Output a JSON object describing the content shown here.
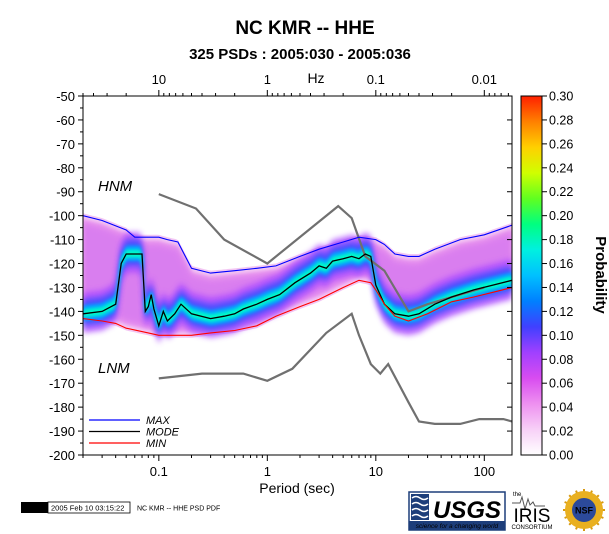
{
  "title": "NC KMR -- HHE",
  "subtitle": "325 PSDs : 2005:030 - 2005:036",
  "footer": {
    "gmt_label": "GMT",
    "timestamp": "2005 Feb 10 03:15:22",
    "caption": "NC KMR -- HHE PSD PDF"
  },
  "logos": {
    "usgs_text": "USGS",
    "usgs_tagline": "science for a changing world",
    "iris_text": "IRIS",
    "iris_sub": "CONSORTIUM",
    "iris_prefix": "the",
    "nsf_text": "NSF"
  },
  "chart_data": {
    "type": "heatmap",
    "title": "NC KMR -- HHE",
    "subtitle": "325 PSDs : 2005:030 - 2005:036",
    "xlabel": "Period (sec)",
    "top_axis_label": "Hz",
    "x_scale": "log",
    "xlim": [
      0.02,
      180
    ],
    "ylim": [
      -200,
      -50
    ],
    "x_ticks": [
      {
        "value": 0.1,
        "label": "0.1"
      },
      {
        "value": 1,
        "label": "1"
      },
      {
        "value": 10,
        "label": "10"
      },
      {
        "value": 100,
        "label": "100"
      }
    ],
    "top_ticks": [
      {
        "value": 10,
        "label": "10"
      },
      {
        "value": 1,
        "label": "1"
      },
      {
        "value": 0.1,
        "label": "0.1"
      },
      {
        "value": 0.01,
        "label": "0.01"
      }
    ],
    "y_ticks": [
      -50,
      -60,
      -70,
      -80,
      -90,
      -100,
      -110,
      -120,
      -130,
      -140,
      -150,
      -160,
      -170,
      -180,
      -190,
      -200
    ],
    "colorbar": {
      "label": "Probability",
      "range": [
        0,
        0.3
      ],
      "ticks": [
        "0.00",
        "0.02",
        "0.04",
        "0.06",
        "0.08",
        "0.10",
        "0.12",
        "0.14",
        "0.16",
        "0.18",
        "0.20",
        "0.22",
        "0.24",
        "0.26",
        "0.28",
        "0.30"
      ],
      "colors": [
        "#ffffff",
        "#f7d0f7",
        "#ee90f0",
        "#d84cf0",
        "#a040ff",
        "#4040ff",
        "#0080ff",
        "#00c0ff",
        "#00f0e0",
        "#00ff80",
        "#60ff20",
        "#d0ff00",
        "#ffd000",
        "#ff8000",
        "#ff2000"
      ]
    },
    "legend": [
      {
        "name": "MAX",
        "color": "#0000ff"
      },
      {
        "name": "MODE",
        "color": "#000000"
      },
      {
        "name": "MIN",
        "color": "#ff0000"
      }
    ],
    "reference_curves": [
      {
        "name": "HNM",
        "color": "#707070",
        "points": [
          [
            0.1,
            -91
          ],
          [
            0.22,
            -97
          ],
          [
            0.4,
            -110
          ],
          [
            1,
            -120
          ],
          [
            4.5,
            -96
          ],
          [
            6,
            -101
          ],
          [
            8,
            -117
          ],
          [
            12,
            -123
          ],
          [
            20,
            -140
          ],
          [
            30,
            -137
          ],
          [
            100,
            -130
          ]
        ]
      },
      {
        "name": "LNM",
        "color": "#707070",
        "points": [
          [
            0.1,
            -168
          ],
          [
            0.25,
            -166
          ],
          [
            0.6,
            -166
          ],
          [
            1,
            -169
          ],
          [
            1.7,
            -164
          ],
          [
            3.5,
            -149
          ],
          [
            6,
            -141
          ],
          [
            7,
            -150
          ],
          [
            9,
            -162
          ],
          [
            11,
            -166
          ],
          [
            13,
            -162
          ],
          [
            20,
            -178
          ],
          [
            25,
            -186
          ],
          [
            35,
            -187
          ],
          [
            60,
            -187
          ],
          [
            90,
            -185
          ],
          [
            150,
            -185
          ],
          [
            180,
            -186
          ]
        ]
      }
    ],
    "series": [
      {
        "name": "MAX",
        "color": "#0000ff",
        "points": [
          [
            0.02,
            -100
          ],
          [
            0.03,
            -102
          ],
          [
            0.05,
            -106
          ],
          [
            0.06,
            -109
          ],
          [
            0.1,
            -109
          ],
          [
            0.12,
            -110
          ],
          [
            0.15,
            -111
          ],
          [
            0.2,
            -122
          ],
          [
            0.3,
            -124
          ],
          [
            0.5,
            -123
          ],
          [
            0.8,
            -122
          ],
          [
            1.2,
            -121
          ],
          [
            2,
            -117
          ],
          [
            3,
            -114
          ],
          [
            5,
            -111
          ],
          [
            7,
            -109
          ],
          [
            10,
            -110
          ],
          [
            12,
            -112
          ],
          [
            15,
            -116
          ],
          [
            20,
            -117
          ],
          [
            25,
            -117
          ],
          [
            35,
            -114
          ],
          [
            60,
            -110
          ],
          [
            100,
            -108
          ],
          [
            180,
            -104
          ]
        ]
      },
      {
        "name": "MODE",
        "color": "#000000",
        "points": [
          [
            0.02,
            -141
          ],
          [
            0.03,
            -140
          ],
          [
            0.04,
            -137
          ],
          [
            0.045,
            -120
          ],
          [
            0.05,
            -116
          ],
          [
            0.06,
            -116
          ],
          [
            0.07,
            -116
          ],
          [
            0.075,
            -140
          ],
          [
            0.08,
            -138
          ],
          [
            0.085,
            -133
          ],
          [
            0.09,
            -139
          ],
          [
            0.1,
            -146
          ],
          [
            0.11,
            -140
          ],
          [
            0.12,
            -144
          ],
          [
            0.14,
            -141
          ],
          [
            0.16,
            -137
          ],
          [
            0.2,
            -141
          ],
          [
            0.3,
            -143
          ],
          [
            0.4,
            -142
          ],
          [
            0.5,
            -141
          ],
          [
            0.6,
            -139
          ],
          [
            0.8,
            -137
          ],
          [
            1,
            -135
          ],
          [
            1.3,
            -133
          ],
          [
            1.8,
            -128
          ],
          [
            2.5,
            -124
          ],
          [
            3,
            -121
          ],
          [
            3.5,
            -122
          ],
          [
            4,
            -119
          ],
          [
            5,
            -118
          ],
          [
            6,
            -117
          ],
          [
            7,
            -118
          ],
          [
            8,
            -116
          ],
          [
            9,
            -117
          ],
          [
            10,
            -129
          ],
          [
            12,
            -137
          ],
          [
            15,
            -141
          ],
          [
            20,
            -142
          ],
          [
            25,
            -141
          ],
          [
            35,
            -137
          ],
          [
            50,
            -134
          ],
          [
            80,
            -131
          ],
          [
            120,
            -129
          ],
          [
            180,
            -127
          ]
        ]
      },
      {
        "name": "MIN",
        "color": "#ff0000",
        "points": [
          [
            0.02,
            -143
          ],
          [
            0.03,
            -144
          ],
          [
            0.04,
            -145
          ],
          [
            0.05,
            -147
          ],
          [
            0.08,
            -149
          ],
          [
            0.1,
            -150
          ],
          [
            0.2,
            -150
          ],
          [
            0.3,
            -149
          ],
          [
            0.5,
            -148
          ],
          [
            0.8,
            -146
          ],
          [
            1.2,
            -142
          ],
          [
            2,
            -138
          ],
          [
            3,
            -135
          ],
          [
            5,
            -130
          ],
          [
            7,
            -127
          ],
          [
            9,
            -128
          ],
          [
            10,
            -131
          ],
          [
            12,
            -137
          ],
          [
            15,
            -142
          ],
          [
            20,
            -144
          ],
          [
            30,
            -141
          ],
          [
            50,
            -136
          ],
          [
            80,
            -134
          ],
          [
            120,
            -132
          ],
          [
            180,
            -130
          ]
        ]
      }
    ],
    "annotations": [
      {
        "text": "HNM"
      },
      {
        "text": "LNM"
      }
    ]
  }
}
